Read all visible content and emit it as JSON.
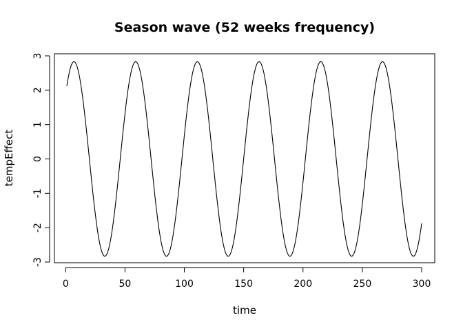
{
  "chart_data": {
    "type": "line",
    "title": "Season wave (52 weeks frequency)",
    "xlabel": "time",
    "ylabel": "tempEffect",
    "xlim": [
      1,
      300
    ],
    "ylim": [
      -3,
      3
    ],
    "x_ticks": [
      0,
      50,
      100,
      150,
      200,
      250,
      300
    ],
    "x_tick_labels": [
      "0",
      "50",
      "100",
      "150",
      "200",
      "250",
      "300"
    ],
    "y_ticks": [
      -3,
      -2,
      -1,
      0,
      1,
      2,
      3
    ],
    "y_tick_labels": [
      "-3",
      "-2",
      "-1",
      "0",
      "1",
      "2",
      "3"
    ],
    "grid": false,
    "legend": "none",
    "series": [
      {
        "amplitude": 2.83,
        "period": 52,
        "peak_times": [
          7,
          59,
          111,
          163,
          215,
          267
        ],
        "trough_times": [
          33,
          85,
          137,
          189,
          241,
          293
        ],
        "x": [
          1,
          7,
          20,
          33,
          46,
          59,
          72,
          85,
          98,
          111,
          124,
          137,
          150,
          163,
          176,
          189,
          202,
          215,
          228,
          241,
          254,
          267,
          280,
          293,
          300
        ],
        "values": [
          2.23,
          2.83,
          0,
          -2.83,
          0,
          2.83,
          0,
          -2.83,
          0,
          2.83,
          0,
          -2.83,
          0,
          2.83,
          0,
          -2.83,
          0,
          2.83,
          0,
          -2.83,
          0,
          2.83,
          0,
          -2.83,
          -2.05
        ],
        "color": "#000000"
      }
    ]
  }
}
